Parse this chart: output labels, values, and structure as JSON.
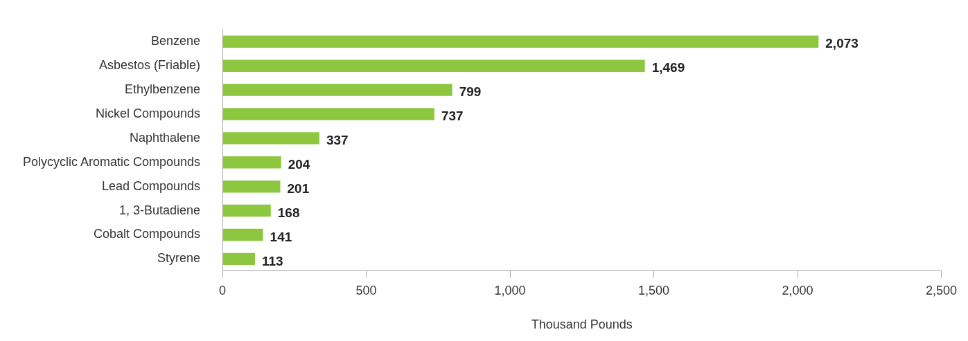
{
  "chart_data": {
    "type": "bar",
    "orientation": "horizontal",
    "xlabel": "Thousand Pounds",
    "categories": [
      "Benzene",
      "Asbestos (Friable)",
      "Ethylbenzene",
      "Nickel Compounds",
      "Naphthalene",
      "Polycyclic Aromatic Compounds",
      "Lead Compounds",
      "1, 3-Butadiene",
      "Cobalt Compounds",
      "Styrene"
    ],
    "values": [
      2073,
      1469,
      799,
      737,
      337,
      204,
      201,
      168,
      141,
      113
    ],
    "color": "#8dc63f",
    "xlim": [
      0,
      2500
    ],
    "xticks": [
      0,
      {
        "value": 500,
        "label": "500"
      },
      {
        "value": 1000,
        "label": "1,000"
      },
      {
        "value": 1500,
        "label": "1,500"
      },
      {
        "value": 2000,
        "label": "2,000"
      },
      {
        "value": 2500,
        "label": "2,500"
      }
    ],
    "value_labels": [
      "2,073",
      "1,469",
      "799",
      "737",
      "337",
      "204",
      "201",
      "168",
      "141",
      "113"
    ],
    "grid": false,
    "legend": false
  }
}
